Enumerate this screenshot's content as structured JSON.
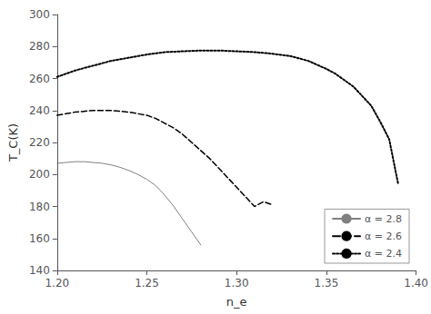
{
  "chart_data": {
    "type": "line",
    "xlabel": "n_e",
    "ylabel": "T_C(K)",
    "xlim": [
      1.2,
      1.4
    ],
    "ylim": [
      140,
      300
    ],
    "xticks": [
      {
        "value": 1.2,
        "label": "1.20"
      },
      1.25,
      {
        "value": 1.3,
        "label": "1.30"
      },
      1.35,
      {
        "value": 1.4,
        "label": "1.40"
      }
    ],
    "yticks": [
      140,
      160,
      180,
      200,
      220,
      240,
      260,
      280,
      300
    ],
    "grid": false,
    "legend": "lower right",
    "series": [
      {
        "name": "α = 2.8",
        "color": "#808080",
        "line_style": "solid",
        "x": [
          1.2,
          1.205,
          1.21,
          1.215,
          1.22,
          1.225,
          1.23,
          1.235,
          1.24,
          1.245,
          1.25,
          1.255,
          1.26,
          1.265,
          1.27,
          1.275,
          1.28
        ],
        "values": [
          207,
          207.5,
          208,
          208,
          207.5,
          207,
          206,
          204.5,
          202.5,
          200,
          197,
          193,
          187,
          180,
          172,
          164,
          156
        ]
      },
      {
        "name": "α = 2.6",
        "color": "#000000",
        "line_style": "dashed",
        "x": [
          1.2,
          1.205,
          1.21,
          1.215,
          1.22,
          1.225,
          1.23,
          1.235,
          1.24,
          1.245,
          1.25,
          1.255,
          1.26,
          1.265,
          1.27,
          1.275,
          1.28,
          1.285,
          1.29,
          1.295,
          1.3,
          1.305,
          1.31,
          1.315,
          1.32
        ],
        "values": [
          237,
          238,
          239,
          239.5,
          240,
          240,
          240,
          239.5,
          239,
          238,
          237,
          235,
          232,
          229,
          225,
          220,
          215,
          210,
          204,
          198,
          192,
          186,
          180,
          183,
          181
        ]
      },
      {
        "name": "α = 2.4",
        "color": "#000000",
        "line_style": "dotted",
        "x": [
          1.2,
          1.21,
          1.22,
          1.23,
          1.24,
          1.25,
          1.26,
          1.27,
          1.28,
          1.29,
          1.3,
          1.31,
          1.32,
          1.33,
          1.34,
          1.35,
          1.355,
          1.36,
          1.365,
          1.37,
          1.375,
          1.38,
          1.385,
          1.39
        ],
        "values": [
          261,
          265,
          268,
          271,
          273,
          275,
          276.5,
          277,
          277.5,
          277.5,
          277,
          276.5,
          275.5,
          274,
          271,
          266,
          263,
          259,
          255,
          249,
          243,
          233,
          222,
          194
        ]
      }
    ]
  }
}
